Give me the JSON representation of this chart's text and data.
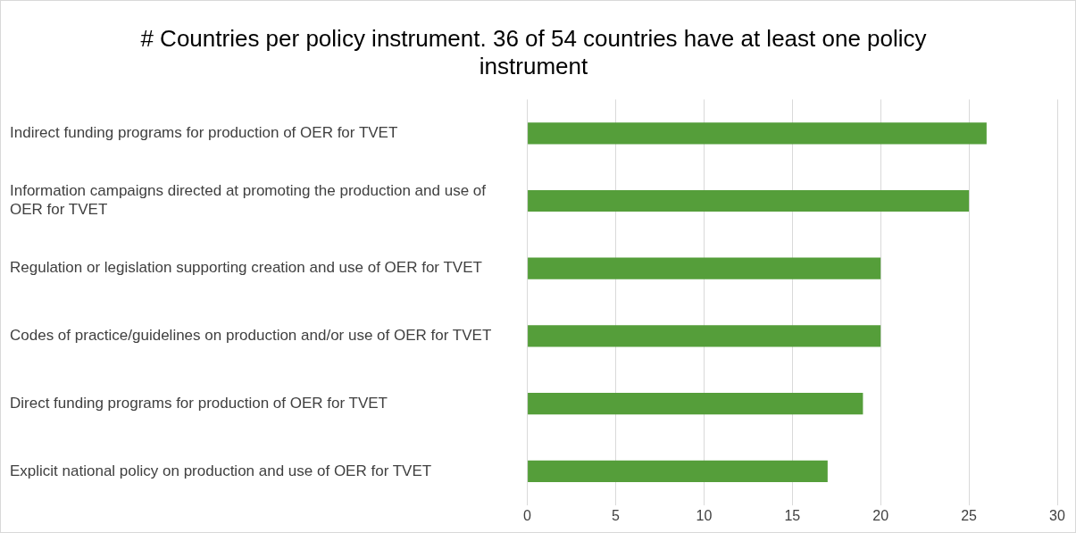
{
  "chart_data": {
    "type": "bar",
    "orientation": "horizontal",
    "title": "# Countries per policy instrument. 36 of 54 countries have at least one policy instrument",
    "categories": [
      "Indirect funding programs for production of OER for TVET",
      "Information campaigns directed at promoting the production and use of OER for TVET",
      "Regulation or legislation supporting creation and use of OER for TVET",
      "Codes of practice/guidelines on production and/or use of OER for TVET",
      "Direct funding programs for production of OER for TVET",
      "Explicit national policy on production and use of OER for TVET"
    ],
    "values": [
      26,
      25,
      20,
      20,
      19,
      17
    ],
    "color": "#559e3a",
    "xlim": [
      0,
      30
    ],
    "xticks": [
      0,
      5,
      10,
      15,
      20,
      25,
      30
    ],
    "grid": "x",
    "legend": false
  }
}
